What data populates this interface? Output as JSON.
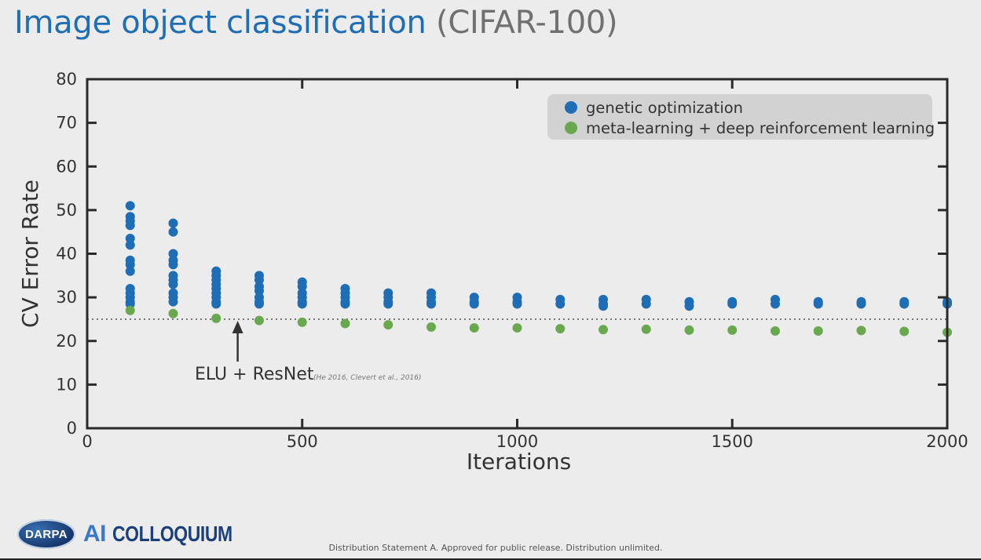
{
  "slide": {
    "title_main": "Image object classification",
    "title_sub": "(CIFAR-100)",
    "logo": {
      "badge": "DARPA",
      "ai": "AI",
      "colloquium": "COLLOQUIUM"
    },
    "footer": "Distribution Statement A. Approved for public release. Distribution unlimited."
  },
  "chart_data": {
    "type": "scatter",
    "title": "",
    "xlabel": "Iterations",
    "ylabel": "CV Error Rate",
    "xlim": [
      0,
      2000
    ],
    "ylim": [
      0,
      80
    ],
    "xticks": [
      0,
      500,
      1000,
      1500,
      2000
    ],
    "yticks": [
      0,
      10,
      20,
      30,
      40,
      50,
      60,
      70,
      80
    ],
    "grid": false,
    "legend_position": "top-right",
    "series": [
      {
        "name": "genetic optimization",
        "color": "#1f6db5",
        "points": [
          [
            100,
            51
          ],
          [
            100,
            48.5
          ],
          [
            100,
            47.5
          ],
          [
            100,
            46.5
          ],
          [
            100,
            43.5
          ],
          [
            100,
            42
          ],
          [
            100,
            38.5
          ],
          [
            100,
            37.5
          ],
          [
            100,
            36
          ],
          [
            100,
            32
          ],
          [
            100,
            31
          ],
          [
            100,
            30
          ],
          [
            100,
            29
          ],
          [
            100,
            28.5
          ],
          [
            200,
            47
          ],
          [
            200,
            45
          ],
          [
            200,
            40
          ],
          [
            200,
            38.5
          ],
          [
            200,
            37.5
          ],
          [
            200,
            35
          ],
          [
            200,
            34
          ],
          [
            200,
            33
          ],
          [
            200,
            31
          ],
          [
            200,
            30
          ],
          [
            200,
            29
          ],
          [
            300,
            36
          ],
          [
            300,
            35
          ],
          [
            300,
            34
          ],
          [
            300,
            33
          ],
          [
            300,
            32
          ],
          [
            300,
            31
          ],
          [
            300,
            30
          ],
          [
            300,
            29
          ],
          [
            300,
            28.5
          ],
          [
            400,
            35
          ],
          [
            400,
            34
          ],
          [
            400,
            32.5
          ],
          [
            400,
            31.5
          ],
          [
            400,
            30
          ],
          [
            400,
            29
          ],
          [
            400,
            28.5
          ],
          [
            500,
            33.5
          ],
          [
            500,
            32.5
          ],
          [
            500,
            31
          ],
          [
            500,
            30
          ],
          [
            500,
            29
          ],
          [
            500,
            28.5
          ],
          [
            600,
            32
          ],
          [
            600,
            31
          ],
          [
            600,
            30
          ],
          [
            600,
            29
          ],
          [
            600,
            28.5
          ],
          [
            700,
            31
          ],
          [
            700,
            30
          ],
          [
            700,
            29
          ],
          [
            700,
            28.5
          ],
          [
            800,
            31
          ],
          [
            800,
            30
          ],
          [
            800,
            29
          ],
          [
            800,
            28.5
          ],
          [
            900,
            30
          ],
          [
            900,
            29
          ],
          [
            900,
            28.5
          ],
          [
            1000,
            30
          ],
          [
            1000,
            29
          ],
          [
            1000,
            28.5
          ],
          [
            1100,
            29.5
          ],
          [
            1100,
            28.5
          ],
          [
            1200,
            29.5
          ],
          [
            1200,
            28.5
          ],
          [
            1200,
            28
          ],
          [
            1300,
            29.5
          ],
          [
            1300,
            28.5
          ],
          [
            1400,
            29
          ],
          [
            1400,
            28
          ],
          [
            1500,
            29
          ],
          [
            1500,
            28.5
          ],
          [
            1600,
            29.5
          ],
          [
            1600,
            28.5
          ],
          [
            1700,
            29
          ],
          [
            1700,
            28.5
          ],
          [
            1800,
            29
          ],
          [
            1800,
            28.5
          ],
          [
            1900,
            29
          ],
          [
            1900,
            28.5
          ],
          [
            2000,
            29
          ],
          [
            2000,
            28.5
          ]
        ]
      },
      {
        "name": "meta-learning + deep reinforcement learning",
        "color": "#6aa84f",
        "points": [
          [
            100,
            27
          ],
          [
            200,
            26.3
          ],
          [
            300,
            25.2
          ],
          [
            400,
            24.7
          ],
          [
            500,
            24.3
          ],
          [
            600,
            24
          ],
          [
            700,
            23.7
          ],
          [
            800,
            23.2
          ],
          [
            900,
            23
          ],
          [
            1000,
            23
          ],
          [
            1100,
            22.8
          ],
          [
            1200,
            22.6
          ],
          [
            1300,
            22.7
          ],
          [
            1400,
            22.5
          ],
          [
            1500,
            22.5
          ],
          [
            1600,
            22.3
          ],
          [
            1700,
            22.3
          ],
          [
            1800,
            22.4
          ],
          [
            1900,
            22.2
          ],
          [
            2000,
            22
          ]
        ]
      }
    ],
    "reference_line": {
      "y": 25,
      "style": "dotted"
    },
    "annotation": {
      "label": "ELU + ResNet",
      "citation": "(He 2016, Clevert et al., 2016)",
      "arrow_x": 350,
      "arrow_y": 25
    }
  }
}
